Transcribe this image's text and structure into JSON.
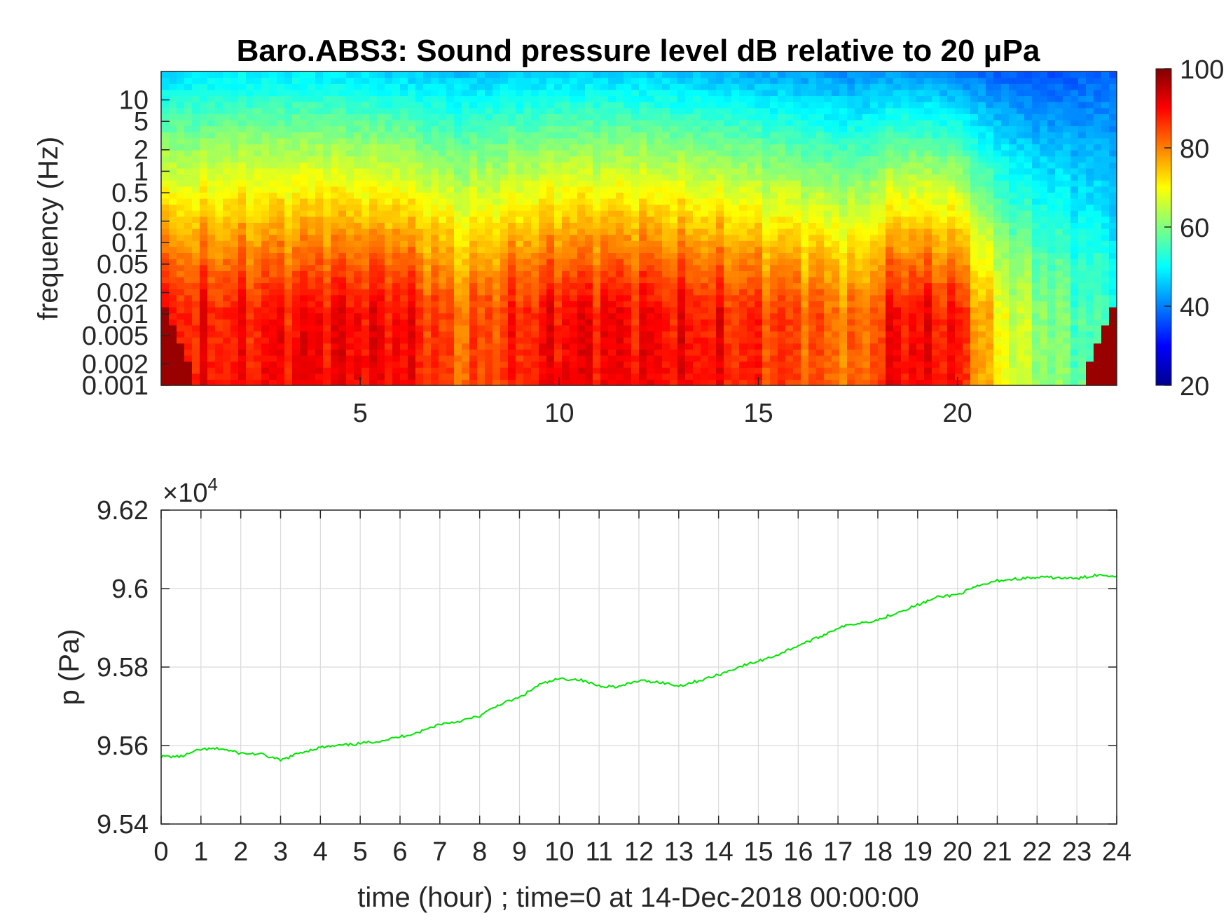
{
  "chart_data": [
    {
      "type": "heatmap",
      "title": "Baro.ABS3: Sound pressure level dB relative to 20 μPa",
      "ylabel": "frequency (Hz)",
      "xlabel": "",
      "x_ticks": [
        "5",
        "10",
        "15",
        "20"
      ],
      "x_tick_values": [
        5,
        10,
        15,
        20
      ],
      "xlim": [
        0,
        24
      ],
      "y_scale": "log",
      "y_ticks": [
        "10",
        "5",
        "2",
        "1",
        "0.5",
        "0.2",
        "0.1",
        "0.05",
        "0.02",
        "0.01",
        "0.005",
        "0.002",
        "0.001"
      ],
      "y_tick_values": [
        10,
        5,
        2,
        1,
        0.5,
        0.2,
        0.1,
        0.05,
        0.02,
        0.01,
        0.005,
        0.002,
        0.001
      ],
      "ylim": [
        0.001,
        25
      ],
      "colormap": "jet",
      "colorbar": {
        "ticks": [
          "100",
          "80",
          "60",
          "40",
          "20"
        ],
        "tick_values": [
          100,
          80,
          60,
          40,
          20
        ],
        "range": [
          20,
          100
        ]
      },
      "approx_profile": {
        "time_hours": [
          0,
          2,
          4,
          6,
          7.5,
          10,
          12,
          14,
          16,
          17.5,
          18.5,
          20,
          21,
          22,
          23.5
        ],
        "level_at_0.01Hz_dB": [
          88,
          88,
          90,
          90,
          82,
          90,
          90,
          88,
          84,
          80,
          90,
          88,
          70,
          62,
          55
        ],
        "level_at_10Hz_dB": [
          52,
          54,
          54,
          52,
          50,
          52,
          52,
          50,
          48,
          46,
          48,
          46,
          42,
          40,
          40
        ]
      }
    },
    {
      "type": "line",
      "xlabel": "time (hour) ; time=0 at 14-Dec-2018 00:00:00",
      "ylabel": "p (Pa)",
      "y_multiplier": "×10",
      "y_multiplier_exp": "4",
      "xlim": [
        0,
        24
      ],
      "ylim": [
        9.54,
        9.62
      ],
      "grid": true,
      "x_ticks": [
        "0",
        "1",
        "2",
        "3",
        "4",
        "5",
        "6",
        "7",
        "8",
        "9",
        "10",
        "11",
        "12",
        "13",
        "14",
        "15",
        "16",
        "17",
        "18",
        "19",
        "20",
        "21",
        "22",
        "23",
        "24"
      ],
      "y_ticks": [
        "9.62",
        "9.6",
        "9.58",
        "9.56",
        "9.54"
      ],
      "y_tick_values": [
        9.62,
        9.6,
        9.58,
        9.56,
        9.54
      ],
      "series": [
        {
          "color": "#00e600",
          "x": [
            0,
            0.5,
            1,
            1.5,
            2,
            2.5,
            3,
            3.5,
            4,
            4.5,
            5,
            5.5,
            6,
            6.5,
            7,
            7.5,
            8,
            8.5,
            9,
            9.5,
            10,
            10.5,
            11,
            11.5,
            12,
            12.5,
            13,
            13.5,
            14,
            14.5,
            15,
            15.5,
            16,
            16.5,
            17,
            17.5,
            18,
            18.5,
            19,
            19.5,
            20,
            20.5,
            21,
            21.5,
            22,
            22.5,
            23,
            23.5,
            24
          ],
          "y": [
            9.5572,
            9.5572,
            9.559,
            9.5592,
            9.558,
            9.5578,
            9.5562,
            9.5582,
            9.5595,
            9.56,
            9.5605,
            9.5612,
            9.5622,
            9.5635,
            9.5655,
            9.5662,
            9.5675,
            9.5705,
            9.5722,
            9.5755,
            9.577,
            9.5768,
            9.5752,
            9.575,
            9.5765,
            9.5762,
            9.5752,
            9.5765,
            9.578,
            9.58,
            9.5815,
            9.5832,
            9.5855,
            9.5875,
            9.59,
            9.5912,
            9.592,
            9.594,
            9.5958,
            9.5978,
            9.5985,
            9.6005,
            9.602,
            9.6025,
            9.6028,
            9.6028,
            9.6025,
            9.6035,
            9.6032
          ]
        }
      ]
    }
  ]
}
